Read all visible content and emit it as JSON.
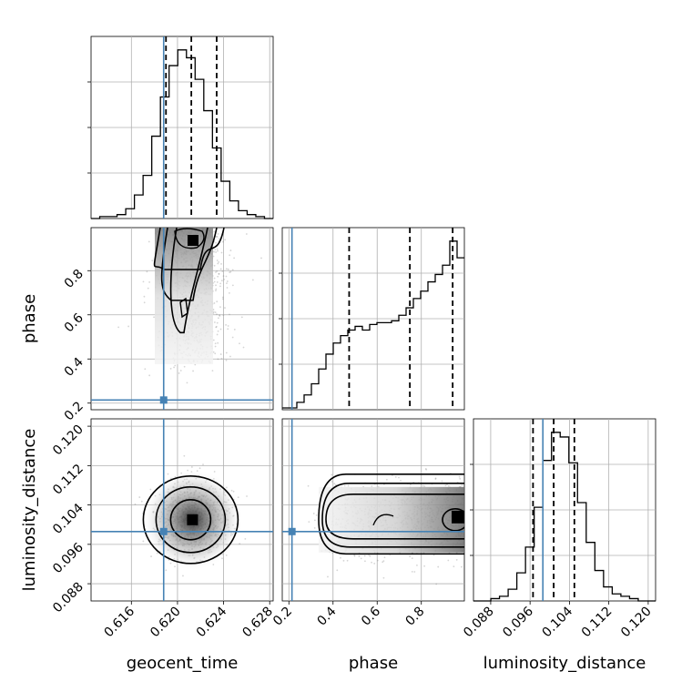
{
  "chart_data": {
    "type": "corner",
    "parameters": [
      "geocent_time",
      "phase",
      "luminosity_distance"
    ],
    "truths": {
      "geocent_time": 0.6188,
      "phase": 0.214,
      "luminosity_distance": 0.0986
    },
    "quantiles": {
      "geocent_time": [
        0.619,
        0.6212,
        0.6234
      ],
      "phase": [
        0.473,
        0.748,
        0.942
      ],
      "luminosity_distance": [
        0.0966,
        0.1008,
        0.105
      ]
    },
    "axes": {
      "geocent_time": {
        "range": [
          0.6125,
          0.6283
        ],
        "ticks": [
          "0.616",
          "0.620",
          "0.624",
          "0.628"
        ]
      },
      "phase": {
        "range": [
          0.17,
          0.995
        ],
        "ticks": [
          "0.2",
          "0.4",
          "0.6",
          "0.8"
        ]
      },
      "luminosity_distance": {
        "range": [
          0.0845,
          0.1215
        ],
        "ticks": [
          "0.088",
          "0.096",
          "0.104",
          "0.112",
          "0.120"
        ]
      }
    },
    "histograms": {
      "geocent_time": [
        0,
        1,
        1,
        2,
        5,
        12,
        22,
        42,
        62,
        78,
        86,
        82,
        71,
        55,
        36,
        19,
        9,
        4,
        2,
        1,
        0
      ],
      "phase": [
        1,
        1,
        4,
        8,
        14,
        22,
        30,
        36,
        40,
        43,
        45,
        43,
        46,
        47,
        47,
        48,
        51,
        55,
        60,
        64,
        69,
        73,
        78,
        91,
        82
      ],
      "luminosity_distance": [
        0,
        0,
        1,
        2,
        5,
        12,
        23,
        40,
        60,
        72,
        70,
        59,
        42,
        25,
        13,
        6,
        3,
        2,
        1,
        0,
        0
      ]
    },
    "grid": true,
    "colors": {
      "truth": "#4682b4",
      "contour": "#000000",
      "samples": "#888888"
    }
  }
}
